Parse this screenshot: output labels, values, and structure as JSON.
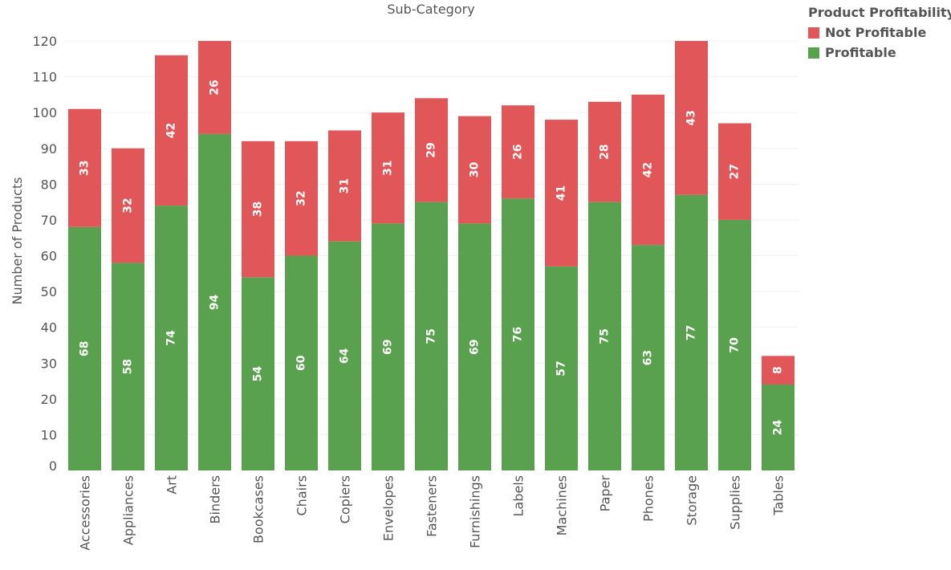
{
  "chart_data": {
    "type": "bar",
    "stacked": true,
    "title": "Sub-Category",
    "xlabel": "",
    "ylabel": "Number of Products",
    "ylim": [
      0,
      120
    ],
    "yticks": [
      0,
      10,
      20,
      30,
      40,
      50,
      60,
      70,
      80,
      90,
      100,
      110,
      120
    ],
    "grid": true,
    "categories": [
      "Accessories",
      "Appliances",
      "Art",
      "Binders",
      "Bookcases",
      "Chairs",
      "Copiers",
      "Envelopes",
      "Fasteners",
      "Furnishings",
      "Labels",
      "Machines",
      "Paper",
      "Phones",
      "Storage",
      "Supplies",
      "Tables"
    ],
    "series": [
      {
        "name": "Profitable",
        "color": "#59a14f",
        "values": [
          68,
          58,
          74,
          94,
          54,
          60,
          64,
          69,
          75,
          69,
          76,
          57,
          75,
          63,
          77,
          70,
          24
        ]
      },
      {
        "name": "Not Profitable",
        "color": "#e15759",
        "values": [
          33,
          32,
          42,
          26,
          38,
          32,
          31,
          31,
          29,
          30,
          26,
          41,
          28,
          42,
          43,
          27,
          8
        ]
      }
    ],
    "legend": {
      "title": "Product Profitability",
      "position": "top-right",
      "items": [
        {
          "label": "Not Profitable",
          "color": "#e15759"
        },
        {
          "label": "Profitable",
          "color": "#59a14f"
        }
      ]
    }
  }
}
